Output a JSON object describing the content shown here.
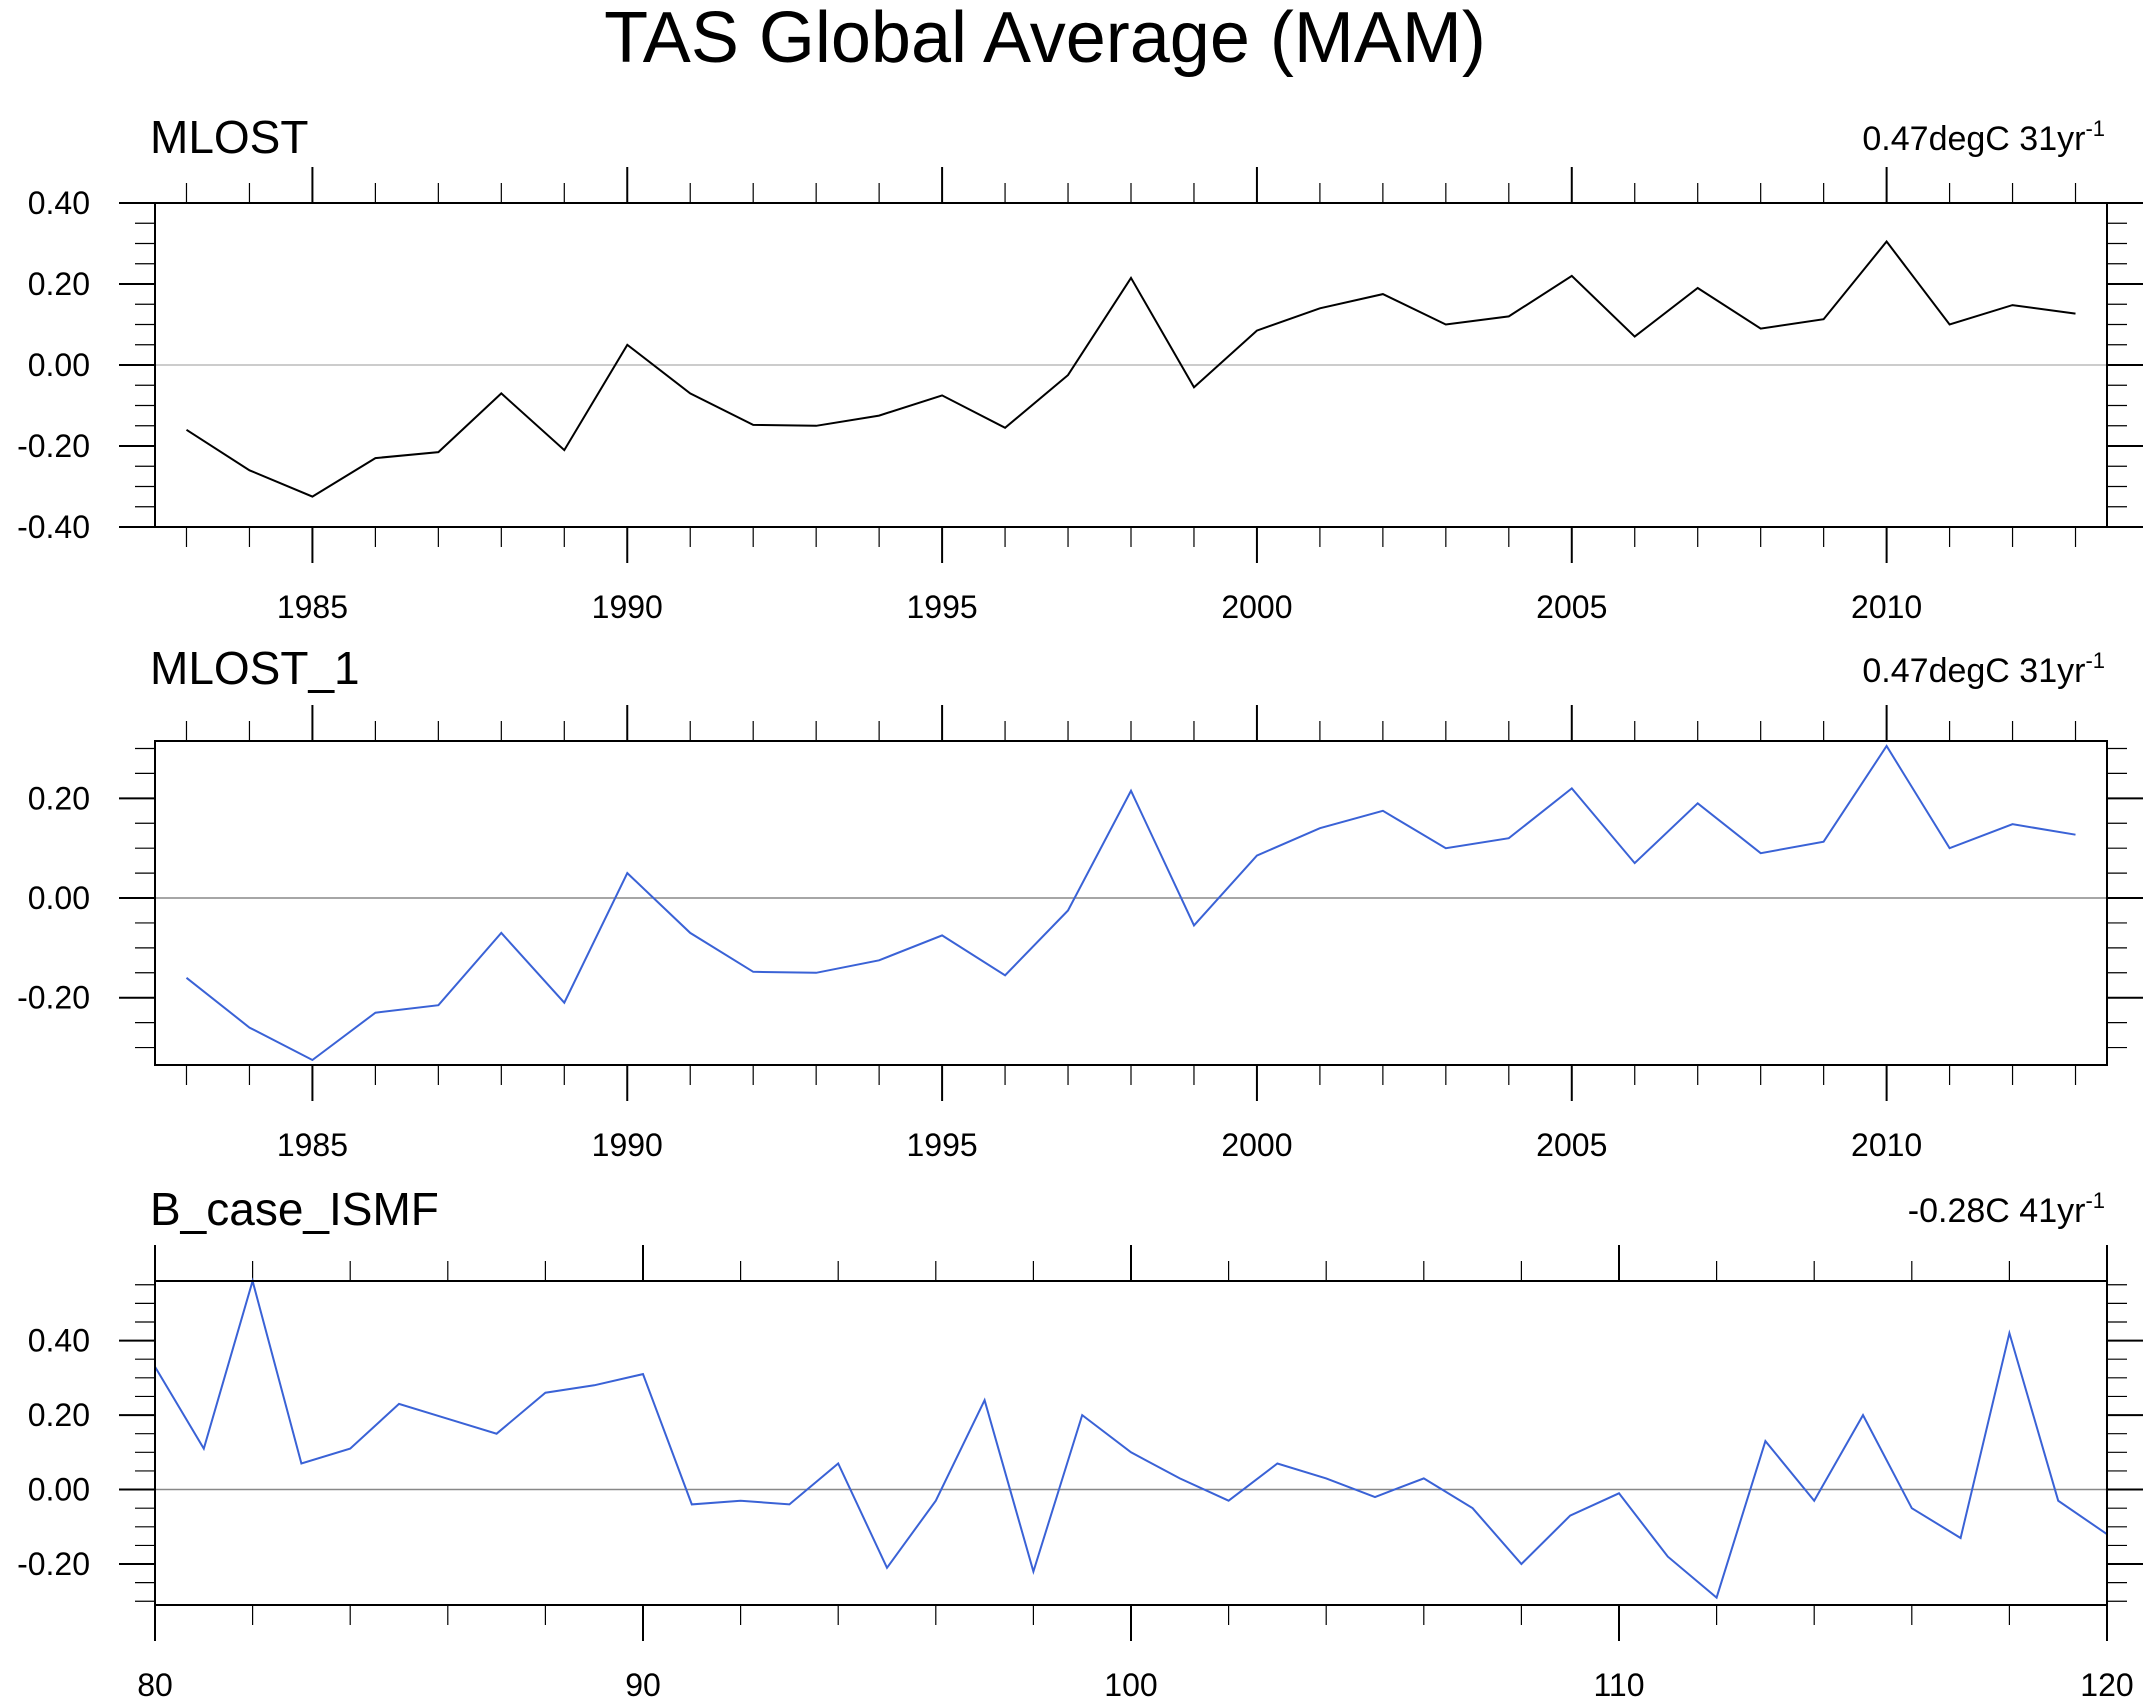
{
  "title": "TAS Global Average (MAM)",
  "chart_data": [
    {
      "type": "line",
      "title": "MLOST",
      "trend": {
        "value": "0.47degC 31yr",
        "exponent": "-1"
      },
      "x": [
        1983,
        1984,
        1985,
        1986,
        1987,
        1988,
        1989,
        1990,
        1991,
        1992,
        1993,
        1994,
        1995,
        1996,
        1997,
        1998,
        1999,
        2000,
        2001,
        2002,
        2003,
        2004,
        2005,
        2006,
        2007,
        2008,
        2009,
        2010,
        2011,
        2012,
        2013
      ],
      "series": [
        {
          "name": "MLOST",
          "color": "#000000",
          "values": [
            -0.16,
            -0.26,
            -0.325,
            -0.23,
            -0.215,
            -0.07,
            -0.21,
            0.05,
            -0.07,
            -0.148,
            -0.15,
            -0.125,
            -0.075,
            -0.155,
            -0.025,
            0.215,
            -0.055,
            0.085,
            0.14,
            0.175,
            0.1,
            0.12,
            0.22,
            0.07,
            0.19,
            0.09,
            0.113,
            0.305,
            0.1,
            0.148,
            0.127
          ]
        }
      ],
      "xlim": [
        1982.5,
        2013.5
      ],
      "ylim": [
        -0.4,
        0.4
      ],
      "x_major_ticks": [
        1985,
        1990,
        1995,
        2000,
        2005,
        2010
      ],
      "x_tick_labels": [
        "1985",
        "1990",
        "1995",
        "2000",
        "2005",
        "2010"
      ],
      "y_major_ticks": [
        -0.4,
        -0.2,
        0,
        0.2,
        0.4
      ],
      "y_tick_labels": [
        "-0.40",
        "-0.20",
        "0.00",
        "0.20",
        "0.40"
      ],
      "zero_line_color": "#bbbbbb"
    },
    {
      "type": "line",
      "title": "MLOST_1",
      "trend": {
        "value": "0.47degC 31yr",
        "exponent": "-1"
      },
      "x": [
        1983,
        1984,
        1985,
        1986,
        1987,
        1988,
        1989,
        1990,
        1991,
        1992,
        1993,
        1994,
        1995,
        1996,
        1997,
        1998,
        1999,
        2000,
        2001,
        2002,
        2003,
        2004,
        2005,
        2006,
        2007,
        2008,
        2009,
        2010,
        2011,
        2012,
        2013
      ],
      "series": [
        {
          "name": "MLOST_1",
          "color": "#3a62d6",
          "values": [
            -0.16,
            -0.26,
            -0.325,
            -0.23,
            -0.215,
            -0.07,
            -0.21,
            0.05,
            -0.07,
            -0.148,
            -0.15,
            -0.125,
            -0.075,
            -0.155,
            -0.025,
            0.215,
            -0.055,
            0.085,
            0.14,
            0.175,
            0.1,
            0.12,
            0.22,
            0.07,
            0.19,
            0.09,
            0.113,
            0.305,
            0.1,
            0.148,
            0.127
          ]
        }
      ],
      "xlim": [
        1982.5,
        2013.5
      ],
      "ylim": [
        -0.335,
        0.315
      ],
      "x_major_ticks": [
        1985,
        1990,
        1995,
        2000,
        2005,
        2010
      ],
      "x_tick_labels": [
        "1985",
        "1990",
        "1995",
        "2000",
        "2005",
        "2010"
      ],
      "y_major_ticks": [
        -0.2,
        0,
        0.2
      ],
      "y_tick_labels": [
        "-0.20",
        "0.00",
        "0.20"
      ],
      "zero_line_color": "#888888"
    },
    {
      "type": "line",
      "title": "B_case_ISMF",
      "trend": {
        "value": "-0.28C 41yr",
        "exponent": "-1"
      },
      "x": [
        80,
        81,
        82,
        83,
        84,
        85,
        86,
        87,
        88,
        89,
        90,
        91,
        92,
        93,
        94,
        95,
        96,
        97,
        98,
        99,
        100,
        101,
        102,
        103,
        104,
        105,
        106,
        107,
        108,
        109,
        110,
        111,
        112,
        113,
        114,
        115,
        116,
        117,
        118,
        119,
        120
      ],
      "series": [
        {
          "name": "B_case_ISMF",
          "color": "#3a62d6",
          "values": [
            0.33,
            0.11,
            0.56,
            0.07,
            0.11,
            0.23,
            0.19,
            0.15,
            0.26,
            0.28,
            0.31,
            -0.04,
            -0.03,
            -0.04,
            0.07,
            -0.21,
            -0.03,
            0.24,
            -0.22,
            0.2,
            0.1,
            0.03,
            -0.03,
            0.07,
            0.03,
            -0.02,
            0.03,
            -0.05,
            -0.2,
            -0.07,
            -0.01,
            -0.18,
            -0.29,
            0.13,
            -0.03,
            0.2,
            -0.05,
            -0.13,
            0.42,
            -0.03,
            -0.12
          ]
        }
      ],
      "xlim": [
        80,
        120
      ],
      "ylim": [
        -0.31,
        0.56
      ],
      "x_major_ticks": [
        80,
        90,
        100,
        110,
        120
      ],
      "x_tick_labels": [
        "80",
        "90",
        "100",
        "110",
        "120"
      ],
      "y_major_ticks": [
        -0.2,
        0,
        0.2,
        0.4
      ],
      "y_tick_labels": [
        "-0.20",
        "0.00",
        "0.20",
        "0.40"
      ],
      "zero_line_color": "#888888"
    }
  ]
}
